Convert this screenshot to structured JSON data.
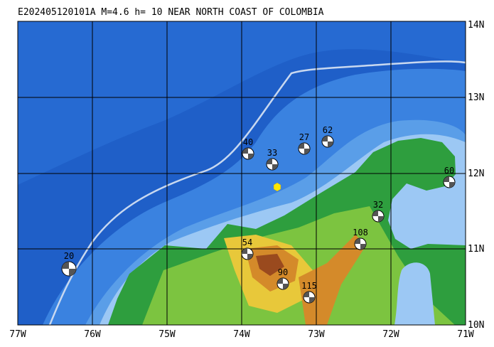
{
  "header": {
    "title": "E202405120101A  M=4.6  h= 10 NEAR NORTH COAST OF COLOMBIA"
  },
  "lat_labels": [
    "14N",
    "13N",
    "12N",
    "11N",
    "10N"
  ],
  "lon_labels": [
    "77W",
    "76W",
    "75W",
    "74W",
    "73W",
    "72W",
    "71W"
  ],
  "events": [
    20,
    40,
    33,
    27,
    62,
    60,
    32,
    108,
    54,
    90,
    115
  ]
}
